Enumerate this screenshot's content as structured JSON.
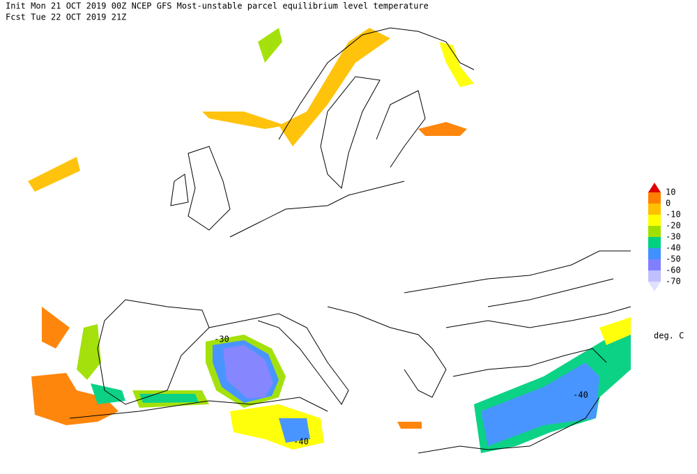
{
  "header": {
    "line1": "Init  Mon 21 OCT 2019 00Z  NCEP GFS Most-unstable parcel equilibrium level temperature",
    "line2": "Fcst Tue 22 OCT 2019 21Z"
  },
  "legend": {
    "levels": [
      10,
      0,
      -10,
      -20,
      -30,
      -40,
      -50,
      -60,
      -70
    ],
    "colors": [
      "#e00000",
      "#ff8000",
      "#ffc000",
      "#ffff00",
      "#a0e000",
      "#00d080",
      "#4090ff",
      "#8080ff",
      "#c0c0ff",
      "#e0e0ff"
    ],
    "unit": "deg. C"
  },
  "contour_labels": [
    "-40",
    "-40",
    "-30"
  ]
}
